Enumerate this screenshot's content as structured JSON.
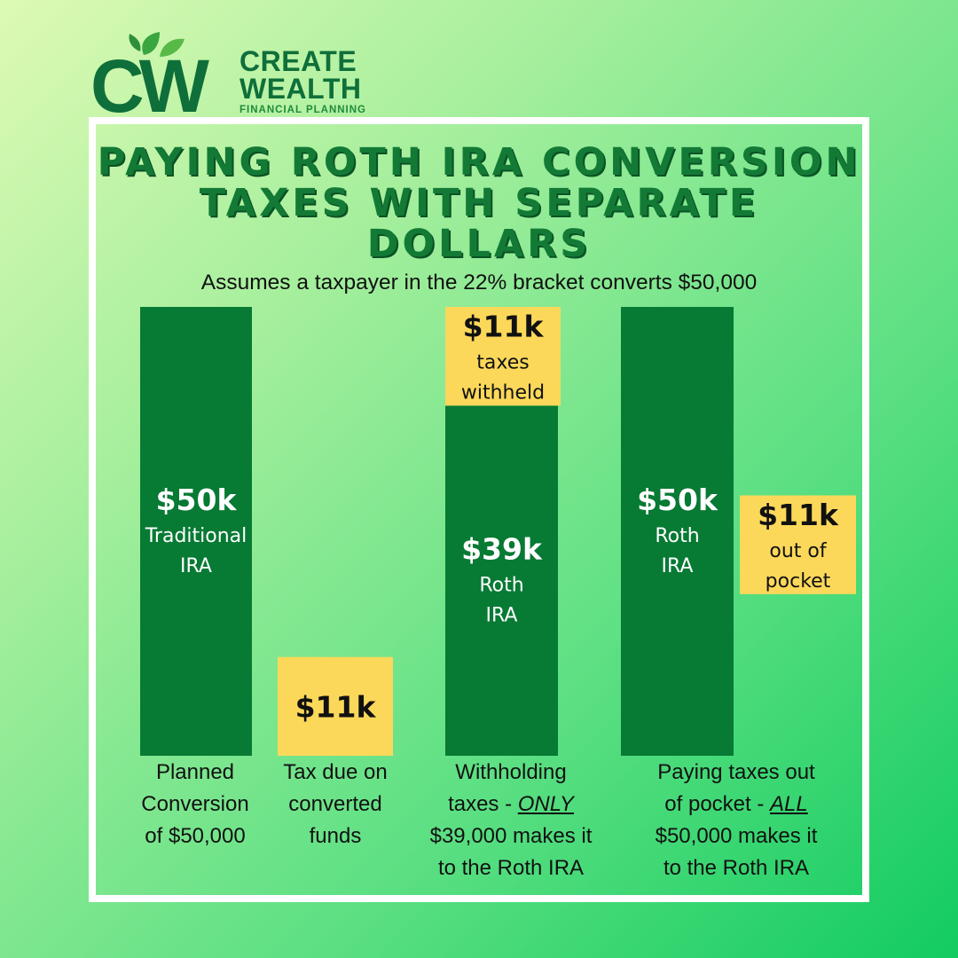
{
  "logo": {
    "monogram": "CW",
    "line1": "CREATE",
    "line2": "WEALTH",
    "line3": "FINANCIAL PLANNING"
  },
  "colors": {
    "bar_green": "#077a34",
    "tax_yellow": "#fcd85a",
    "title_green": "#137a36",
    "frame": "#ffffff"
  },
  "title": "PAYING ROTH IRA CONVERSION TAXES WITH SEPARATE DOLLARS",
  "subtitle": "Assumes a taxpayer in the 22% bracket converts $50,000",
  "chart_data": {
    "type": "bar",
    "title": "PAYING ROTH IRA CONVERSION TAXES WITH SEPARATE DOLLARS",
    "subtitle": "Assumes a taxpayer in the 22% bracket converts $50,000",
    "unit": "$k",
    "categories": [
      "Planned Conversion of $50,000",
      "Tax due on converted funds",
      "Withholding taxes - ONLY $39,000 makes it to the Roth IRA",
      "Paying taxes out of pocket - ALL $50,000 makes it to the Roth IRA"
    ],
    "bars": [
      {
        "value": 50,
        "label": "$50k",
        "sub": [
          "Traditional",
          "IRA"
        ],
        "kind": "green",
        "base": 0
      },
      {
        "value": 11,
        "label": "$11k",
        "sub": [],
        "kind": "yellow",
        "base": 0
      },
      {
        "value": 39,
        "label": "$39k",
        "sub": [
          "Roth",
          "IRA"
        ],
        "kind": "green",
        "base": 0
      },
      {
        "value": 11,
        "label": "$11k",
        "sub": [
          "taxes",
          "withheld"
        ],
        "kind": "yellow",
        "base": 39
      },
      {
        "value": 50,
        "label": "$50k",
        "sub": [
          "Roth",
          "IRA"
        ],
        "kind": "green",
        "base": 0
      },
      {
        "value": 11,
        "label": "$11k",
        "sub": [
          "out of",
          "pocket"
        ],
        "kind": "yellow",
        "base": 18
      }
    ],
    "ylim": [
      0,
      50
    ],
    "grid": false
  },
  "captions": {
    "col1": [
      "Planned",
      "Conversion",
      "of $50,000"
    ],
    "col2": [
      "Tax due on",
      "converted",
      "funds"
    ],
    "col3": {
      "line1": "Withholding",
      "line2_pre": "taxes - ",
      "line2_em": "ONLY",
      "line3": "$39,000 makes it",
      "line4": "to the Roth IRA"
    },
    "col4": {
      "line1": "Paying taxes out",
      "line2_pre": "of pocket - ",
      "line2_em": "ALL",
      "line3": "$50,000 makes it",
      "line4": "to the Roth IRA"
    }
  }
}
